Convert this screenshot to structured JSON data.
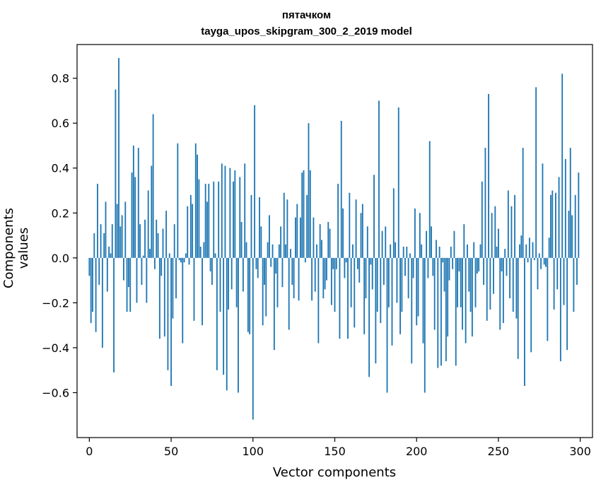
{
  "chart_data": {
    "type": "bar",
    "title": "пятачком",
    "subtitle": "tayga_upos_skipgram_300_2_2019 model",
    "xlabel": "Vector components",
    "ylabel": "Components values",
    "xlim": [
      -7.5,
      307.5
    ],
    "ylim": [
      -0.8,
      0.95
    ],
    "xticks": [
      0,
      50,
      100,
      150,
      200,
      250,
      300
    ],
    "yticks": [
      -0.6,
      -0.4,
      -0.2,
      0.0,
      0.2,
      0.4,
      0.6,
      0.8
    ],
    "ytick_labels": [
      "−0.6",
      "−0.4",
      "−0.2",
      "0.0",
      "0.2",
      "0.4",
      "0.6",
      "0.8"
    ],
    "xtick_labels": [
      "0",
      "50",
      "100",
      "150",
      "200",
      "250",
      "300"
    ],
    "bar_color": "#1f77b4",
    "values": [
      -0.08,
      -0.29,
      -0.24,
      0.11,
      -0.33,
      0.33,
      -0.12,
      0.15,
      -0.4,
      0.11,
      0.25,
      -0.15,
      0.05,
      0.02,
      0.15,
      -0.51,
      0.75,
      0.24,
      0.89,
      0.14,
      0.19,
      -0.1,
      0.25,
      -0.24,
      -0.13,
      -0.24,
      0.38,
      0.5,
      0.36,
      -0.2,
      0.49,
      0.15,
      -0.12,
      0.01,
      0.17,
      -0.2,
      0.3,
      0.04,
      0.41,
      0.64,
      -0.05,
      0.17,
      0.11,
      -0.36,
      -0.08,
      0.13,
      -0.35,
      0.21,
      -0.5,
      0.02,
      -0.57,
      -0.27,
      0.15,
      -0.18,
      0.51,
      -0.01,
      -0.02,
      -0.38,
      -0.02,
      0.02,
      0.23,
      -0.03,
      0.28,
      0.24,
      -0.28,
      0.51,
      0.46,
      0.35,
      0.05,
      -0.3,
      0.07,
      0.33,
      0.25,
      0.33,
      -0.06,
      -0.12,
      0.34,
      0.02,
      -0.5,
      0.34,
      -0.24,
      0.42,
      -0.52,
      0.41,
      -0.59,
      -0.23,
      0.4,
      -0.14,
      0.34,
      0.39,
      -0.22,
      -0.6,
      0.36,
      0.16,
      -0.15,
      0.42,
      0.07,
      -0.33,
      -0.34,
      0.28,
      -0.72,
      0.68,
      -0.05,
      -0.09,
      0.27,
      0.14,
      -0.3,
      -0.12,
      -0.26,
      0.07,
      0.19,
      -0.04,
      0.06,
      -0.41,
      -0.07,
      -0.22,
      0.06,
      0.14,
      -0.13,
      0.29,
      0.06,
      0.26,
      -0.32,
      0.04,
      -0.12,
      -0.18,
      0.18,
      0.24,
      -0.19,
      0.18,
      0.38,
      0.39,
      -0.02,
      0.28,
      0.6,
      0.39,
      -0.19,
      0.18,
      -0.15,
      0.06,
      -0.38,
      0.15,
      0.08,
      -0.18,
      -0.14,
      -0.1,
      0.16,
      0.13,
      -0.21,
      -0.05,
      -0.24,
      -0.05,
      0.33,
      -0.36,
      0.61,
      0.22,
      -0.09,
      -0.02,
      -0.36,
      0.29,
      -0.22,
      0.06,
      -0.31,
      0.26,
      -0.05,
      -0.11,
      0.2,
      0.24,
      -0.34,
      -0.18,
      0.14,
      -0.53,
      -0.03,
      -0.14,
      0.37,
      -0.47,
      -0.24,
      0.7,
      -0.29,
      0.12,
      -0.12,
      0.14,
      -0.6,
      -0.22,
      0.06,
      -0.39,
      0.31,
      0.07,
      -0.2,
      0.67,
      -0.34,
      -0.24,
      0.05,
      -0.08,
      0.05,
      -0.18,
      0.02,
      -0.47,
      -0.09,
      0.22,
      -0.3,
      -0.26,
      0.2,
      0.06,
      -0.38,
      -0.6,
      0.12,
      -0.09,
      0.52,
      0.14,
      -0.08,
      -0.32,
      0.08,
      -0.49,
      0.05,
      -0.48,
      -0.02,
      -0.15,
      -0.46,
      -0.35,
      -0.1,
      0.05,
      -0.05,
      0.12,
      -0.48,
      -0.22,
      -0.06,
      -0.22,
      -0.32,
      0.15,
      -0.38,
      0.06,
      -0.15,
      -0.24,
      -0.35,
      0.07,
      -0.22,
      -0.07,
      -0.06,
      0.06,
      0.34,
      -0.12,
      0.49,
      -0.28,
      0.73,
      -0.23,
      0.2,
      -0.16,
      0.23,
      0.05,
      0.13,
      -0.32,
      -0.06,
      -0.29,
      0.04,
      -0.08,
      0.3,
      -0.18,
      0.23,
      -0.24,
      0.28,
      -0.27,
      -0.45,
      0.06,
      0.1,
      0.49,
      -0.57,
      0.06,
      -0.02,
      0.09,
      -0.42,
      0.07,
      -0.01,
      0.76,
      -0.14,
      0.02,
      -0.05,
      0.42,
      -0.03,
      -0.04,
      -0.37,
      0.09,
      0.28,
      0.3,
      -0.23,
      0.29,
      -0.14,
      0.36,
      -0.46,
      0.82,
      -0.21,
      0.44,
      -0.41,
      0.21,
      0.49,
      0.19,
      -0.24,
      0.28,
      -0.12,
      0.38
    ]
  }
}
